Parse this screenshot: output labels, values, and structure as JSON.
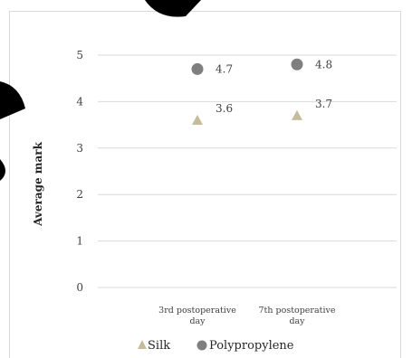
{
  "chart_data": {
    "type": "scatter",
    "title": "",
    "xlabel": "",
    "ylabel": "Average mark",
    "ylim": [
      0,
      5
    ],
    "yticks": [
      0,
      1,
      2,
      3,
      4,
      5
    ],
    "grid": true,
    "legend_position": "bottom",
    "categories": [
      [
        "3rd postoperative",
        "day"
      ],
      [
        "7th postoperative",
        "day"
      ]
    ],
    "series": [
      {
        "name": "Silk",
        "marker": "triangle",
        "color": "#c4bc9a",
        "values": [
          3.6,
          3.7
        ],
        "labels": [
          "3.6",
          "3.7"
        ]
      },
      {
        "name": "Polypropylene",
        "marker": "circle",
        "color": "#7f7f7f",
        "values": [
          4.7,
          4.8
        ],
        "labels": [
          "4.7",
          "4.8"
        ]
      }
    ]
  }
}
